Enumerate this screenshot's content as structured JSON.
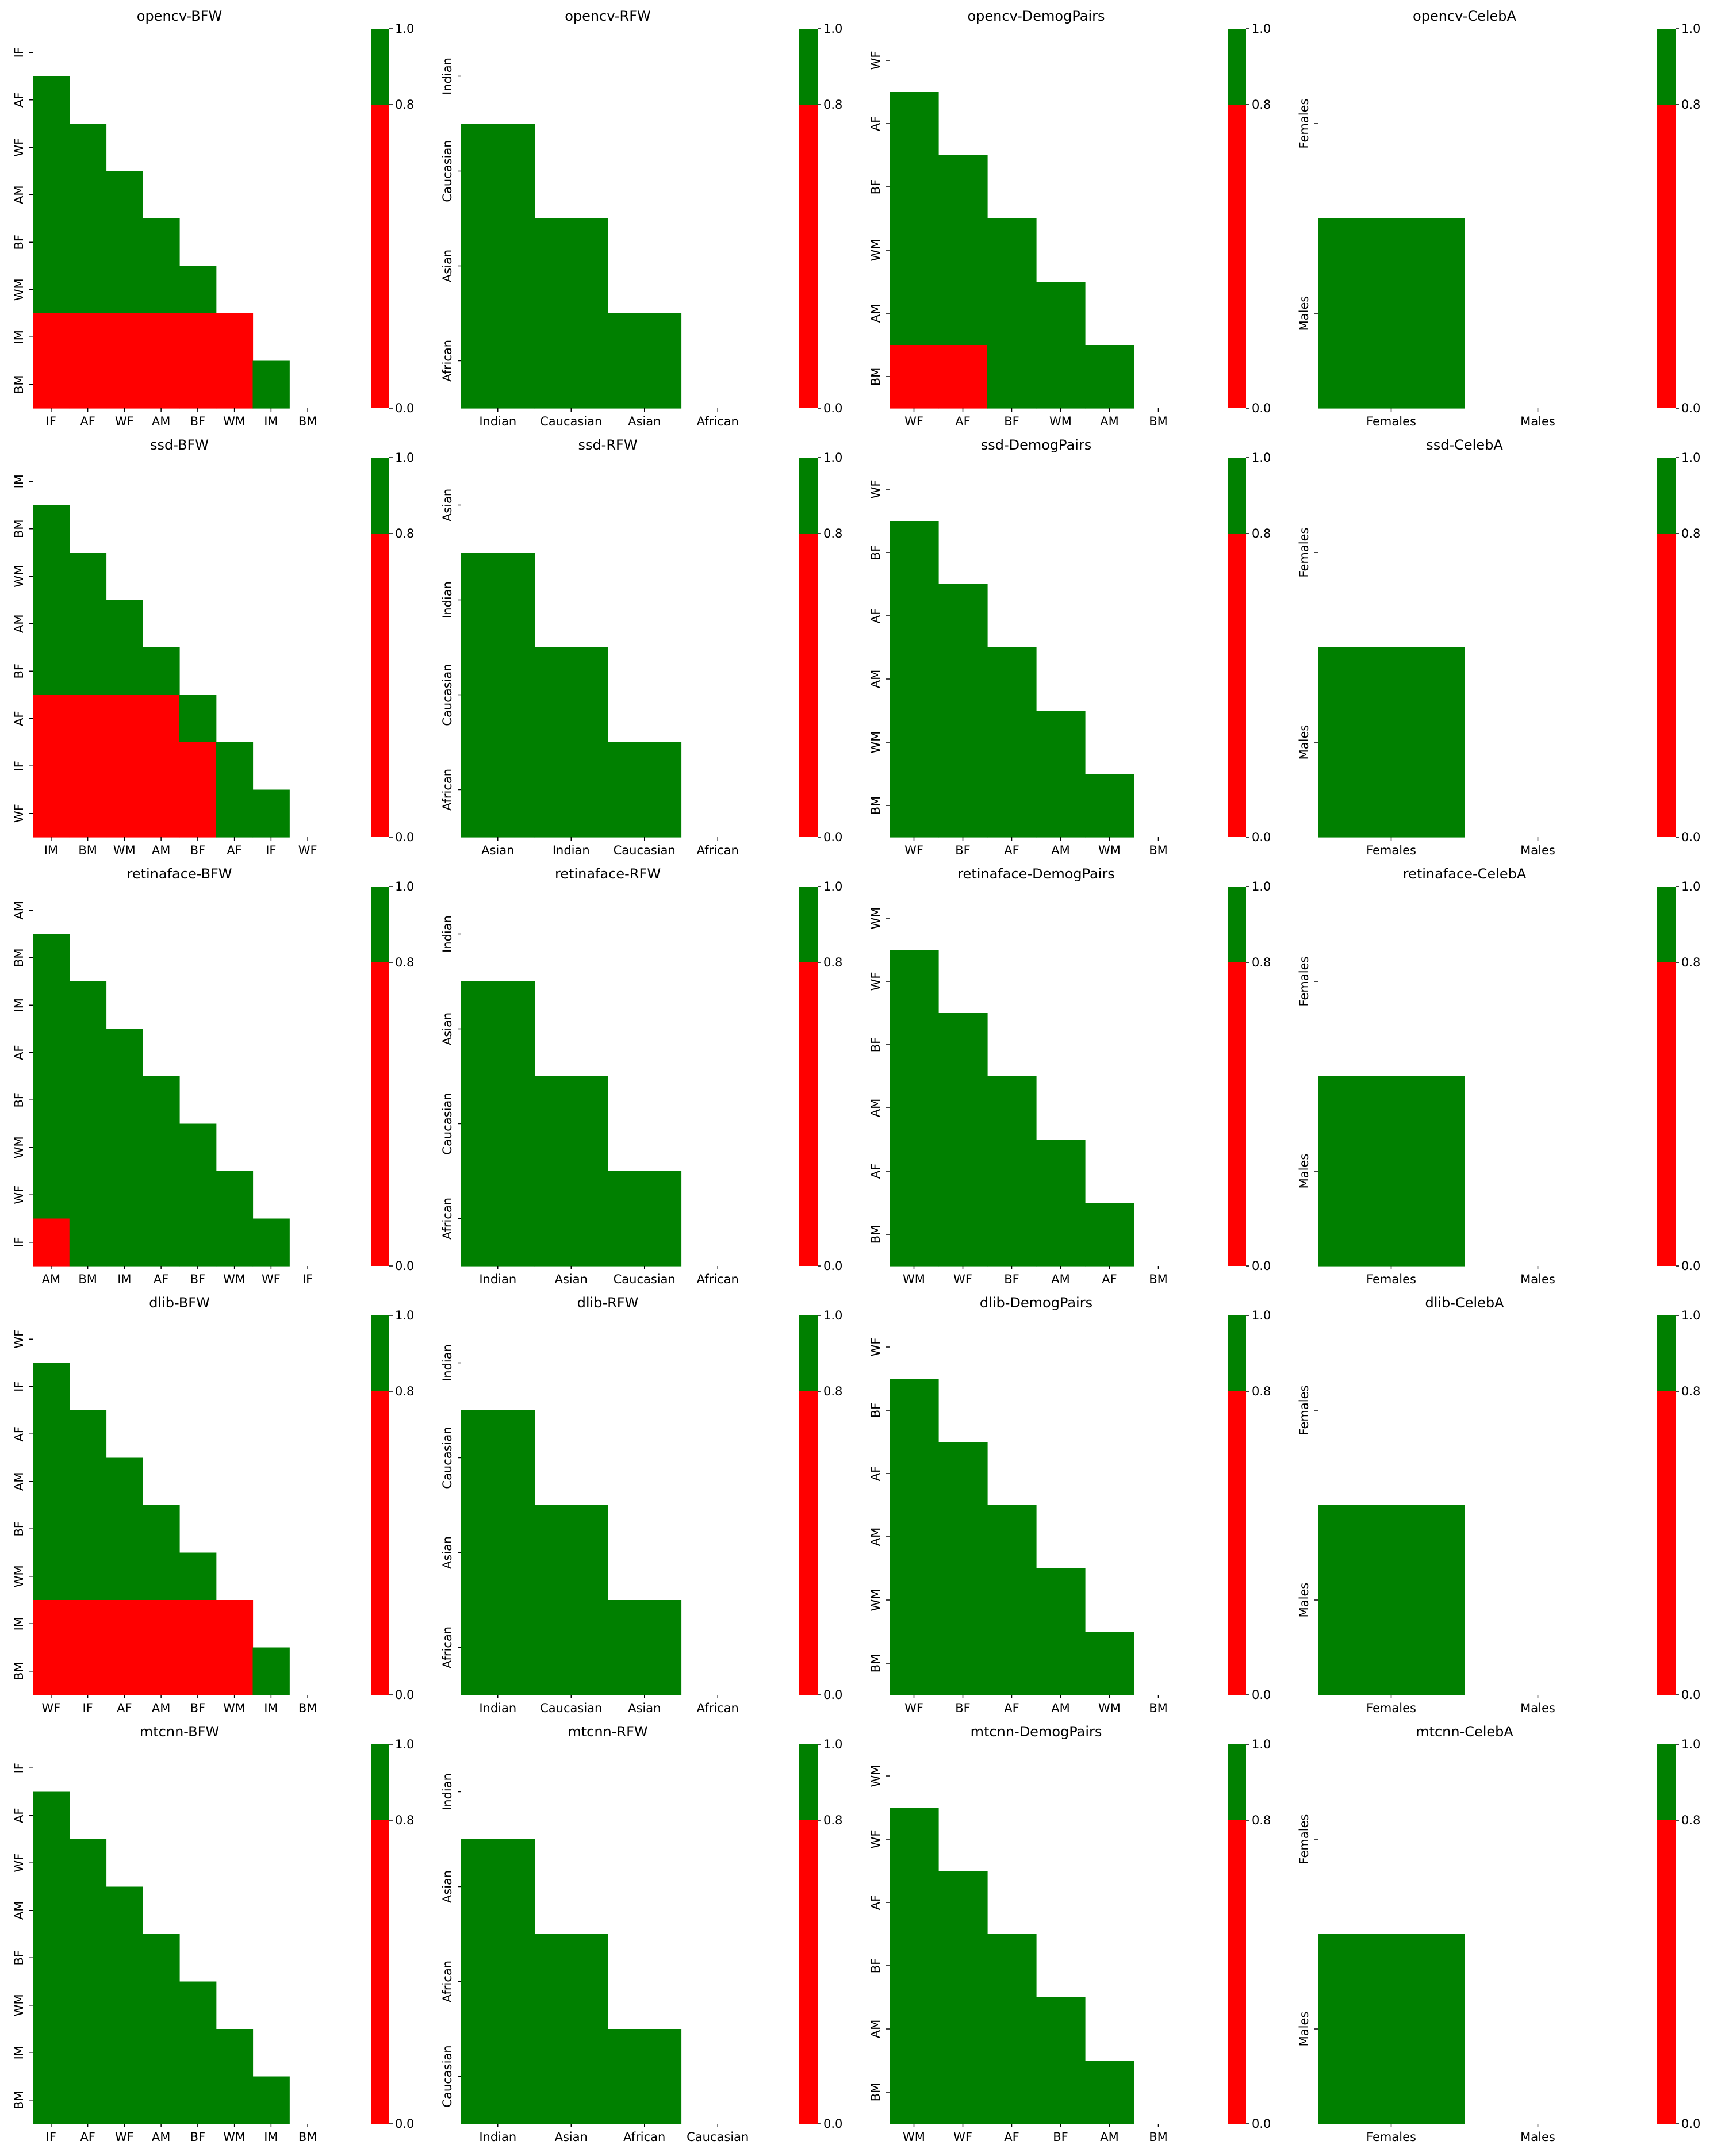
{
  "colors": {
    "above": "#008000",
    "below": "#ff0000"
  },
  "colorbar": {
    "ticks": [
      "0.0",
      "0.8",
      "1.0"
    ],
    "threshold": 0.8,
    "range": [
      0,
      1
    ]
  },
  "chart_data": [
    {
      "type": "heatmap",
      "title": "opencv-BFW",
      "xlabels": [
        "IF",
        "AF",
        "WF",
        "AM",
        "BF",
        "WM",
        "IM",
        "BM"
      ],
      "ylabels": [
        "IF",
        "AF",
        "WF",
        "AM",
        "BF",
        "WM",
        "IM",
        "BM"
      ],
      "below_threshold_cells": [
        [
          6,
          0
        ],
        [
          6,
          1
        ],
        [
          6,
          2
        ],
        [
          6,
          3
        ],
        [
          6,
          4
        ],
        [
          6,
          5
        ],
        [
          7,
          0
        ],
        [
          7,
          1
        ],
        [
          7,
          2
        ],
        [
          7,
          3
        ],
        [
          7,
          4
        ],
        [
          7,
          5
        ]
      ]
    },
    {
      "type": "heatmap",
      "title": "opencv-RFW",
      "xlabels": [
        "Indian",
        "Caucasian",
        "Asian",
        "African"
      ],
      "ylabels": [
        "Indian",
        "Caucasian",
        "Asian",
        "African"
      ],
      "below_threshold_cells": []
    },
    {
      "type": "heatmap",
      "title": "opencv-DemogPairs",
      "xlabels": [
        "WF",
        "AF",
        "BF",
        "WM",
        "AM",
        "BM"
      ],
      "ylabels": [
        "WF",
        "AF",
        "BF",
        "WM",
        "AM",
        "BM"
      ],
      "below_threshold_cells": [
        [
          5,
          0
        ],
        [
          5,
          1
        ]
      ]
    },
    {
      "type": "heatmap",
      "title": "opencv-CelebA",
      "xlabels": [
        "Females",
        "Males"
      ],
      "ylabels": [
        "Females",
        "Males"
      ],
      "below_threshold_cells": []
    },
    {
      "type": "heatmap",
      "title": "ssd-BFW",
      "xlabels": [
        "IM",
        "BM",
        "WM",
        "AM",
        "BF",
        "AF",
        "IF",
        "WF"
      ],
      "ylabels": [
        "IM",
        "BM",
        "WM",
        "AM",
        "BF",
        "AF",
        "IF",
        "WF"
      ],
      "below_threshold_cells": [
        [
          5,
          0
        ],
        [
          5,
          1
        ],
        [
          5,
          2
        ],
        [
          5,
          3
        ],
        [
          6,
          0
        ],
        [
          6,
          1
        ],
        [
          6,
          2
        ],
        [
          6,
          3
        ],
        [
          6,
          4
        ],
        [
          7,
          0
        ],
        [
          7,
          1
        ],
        [
          7,
          2
        ],
        [
          7,
          3
        ],
        [
          7,
          4
        ]
      ]
    },
    {
      "type": "heatmap",
      "title": "ssd-RFW",
      "xlabels": [
        "Asian",
        "Indian",
        "Caucasian",
        "African"
      ],
      "ylabels": [
        "Asian",
        "Indian",
        "Caucasian",
        "African"
      ],
      "below_threshold_cells": []
    },
    {
      "type": "heatmap",
      "title": "ssd-DemogPairs",
      "xlabels": [
        "WF",
        "BF",
        "AF",
        "AM",
        "WM",
        "BM"
      ],
      "ylabels": [
        "WF",
        "BF",
        "AF",
        "AM",
        "WM",
        "BM"
      ],
      "below_threshold_cells": []
    },
    {
      "type": "heatmap",
      "title": "ssd-CelebA",
      "xlabels": [
        "Females",
        "Males"
      ],
      "ylabels": [
        "Females",
        "Males"
      ],
      "below_threshold_cells": []
    },
    {
      "type": "heatmap",
      "title": "retinaface-BFW",
      "xlabels": [
        "AM",
        "BM",
        "IM",
        "AF",
        "BF",
        "WM",
        "WF",
        "IF"
      ],
      "ylabels": [
        "AM",
        "BM",
        "IM",
        "AF",
        "BF",
        "WM",
        "WF",
        "IF"
      ],
      "below_threshold_cells": [
        [
          7,
          0
        ]
      ]
    },
    {
      "type": "heatmap",
      "title": "retinaface-RFW",
      "xlabels": [
        "Indian",
        "Asian",
        "Caucasian",
        "African"
      ],
      "ylabels": [
        "Indian",
        "Asian",
        "Caucasian",
        "African"
      ],
      "below_threshold_cells": []
    },
    {
      "type": "heatmap",
      "title": "retinaface-DemogPairs",
      "xlabels": [
        "WM",
        "WF",
        "BF",
        "AM",
        "AF",
        "BM"
      ],
      "ylabels": [
        "WM",
        "WF",
        "BF",
        "AM",
        "AF",
        "BM"
      ],
      "below_threshold_cells": []
    },
    {
      "type": "heatmap",
      "title": "retinaface-CelebA",
      "xlabels": [
        "Females",
        "Males"
      ],
      "ylabels": [
        "Females",
        "Males"
      ],
      "below_threshold_cells": []
    },
    {
      "type": "heatmap",
      "title": "dlib-BFW",
      "xlabels": [
        "WF",
        "IF",
        "AF",
        "AM",
        "BF",
        "WM",
        "IM",
        "BM"
      ],
      "ylabels": [
        "WF",
        "IF",
        "AF",
        "AM",
        "BF",
        "WM",
        "IM",
        "BM"
      ],
      "below_threshold_cells": [
        [
          6,
          0
        ],
        [
          6,
          1
        ],
        [
          6,
          2
        ],
        [
          6,
          3
        ],
        [
          6,
          4
        ],
        [
          6,
          5
        ],
        [
          7,
          0
        ],
        [
          7,
          1
        ],
        [
          7,
          2
        ],
        [
          7,
          3
        ],
        [
          7,
          4
        ],
        [
          7,
          5
        ]
      ]
    },
    {
      "type": "heatmap",
      "title": "dlib-RFW",
      "xlabels": [
        "Indian",
        "Caucasian",
        "Asian",
        "African"
      ],
      "ylabels": [
        "Indian",
        "Caucasian",
        "Asian",
        "African"
      ],
      "below_threshold_cells": []
    },
    {
      "type": "heatmap",
      "title": "dlib-DemogPairs",
      "xlabels": [
        "WF",
        "BF",
        "AF",
        "AM",
        "WM",
        "BM"
      ],
      "ylabels": [
        "WF",
        "BF",
        "AF",
        "AM",
        "WM",
        "BM"
      ],
      "below_threshold_cells": []
    },
    {
      "type": "heatmap",
      "title": "dlib-CelebA",
      "xlabels": [
        "Females",
        "Males"
      ],
      "ylabels": [
        "Females",
        "Males"
      ],
      "below_threshold_cells": []
    },
    {
      "type": "heatmap",
      "title": "mtcnn-BFW",
      "xlabels": [
        "IF",
        "AF",
        "WF",
        "AM",
        "BF",
        "WM",
        "IM",
        "BM"
      ],
      "ylabels": [
        "IF",
        "AF",
        "WF",
        "AM",
        "BF",
        "WM",
        "IM",
        "BM"
      ],
      "below_threshold_cells": []
    },
    {
      "type": "heatmap",
      "title": "mtcnn-RFW",
      "xlabels": [
        "Indian",
        "Asian",
        "African",
        "Caucasian"
      ],
      "ylabels": [
        "Indian",
        "Asian",
        "African",
        "Caucasian"
      ],
      "below_threshold_cells": []
    },
    {
      "type": "heatmap",
      "title": "mtcnn-DemogPairs",
      "xlabels": [
        "WM",
        "WF",
        "AF",
        "BF",
        "AM",
        "BM"
      ],
      "ylabels": [
        "WM",
        "WF",
        "AF",
        "BF",
        "AM",
        "BM"
      ],
      "below_threshold_cells": []
    },
    {
      "type": "heatmap",
      "title": "mtcnn-CelebA",
      "xlabels": [
        "Females",
        "Males"
      ],
      "ylabels": [
        "Females",
        "Males"
      ],
      "below_threshold_cells": []
    }
  ]
}
